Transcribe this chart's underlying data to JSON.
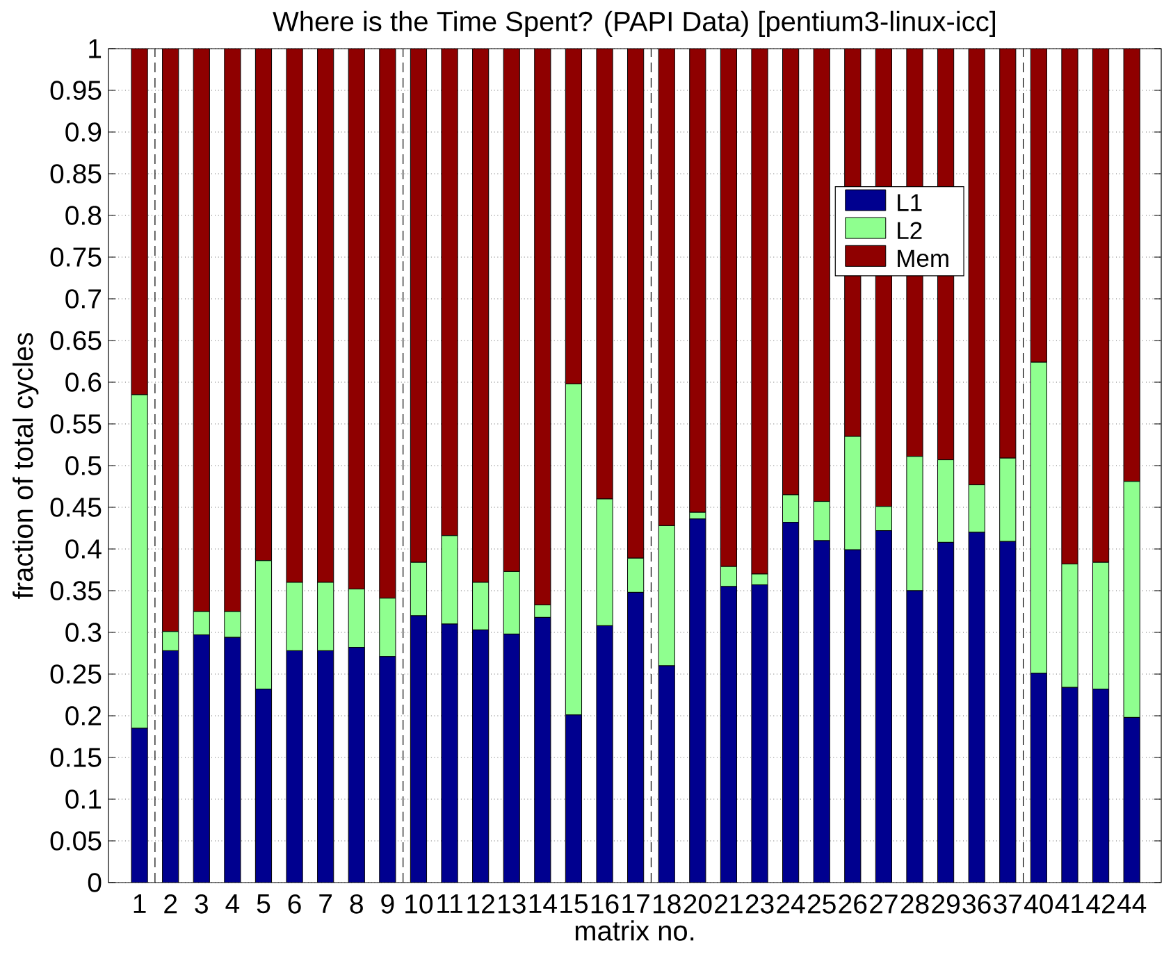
{
  "chart_data": {
    "type": "bar",
    "stacked": true,
    "title": "Where is the Time Spent? (PAPI Data) [pentium3-linux-icc]",
    "xlabel": "matrix no.",
    "ylabel": "fraction of total cycles",
    "categories": [
      "1",
      "2",
      "3",
      "4",
      "5",
      "6",
      "7",
      "8",
      "9",
      "10",
      "11",
      "12",
      "13",
      "14",
      "15",
      "16",
      "17",
      "18",
      "20",
      "21",
      "23",
      "24",
      "25",
      "26",
      "27",
      "28",
      "29",
      "36",
      "37",
      "40",
      "41",
      "42",
      "44"
    ],
    "series": [
      {
        "name": "L1",
        "color": "#00008f",
        "values": [
          0.185,
          0.278,
          0.297,
          0.294,
          0.232,
          0.278,
          0.278,
          0.282,
          0.271,
          0.32,
          0.31,
          0.303,
          0.298,
          0.318,
          0.201,
          0.308,
          0.348,
          0.26,
          0.436,
          0.355,
          0.357,
          0.432,
          0.41,
          0.399,
          0.422,
          0.35,
          0.408,
          0.42,
          0.409,
          0.251,
          0.234,
          0.232,
          0.198
        ]
      },
      {
        "name": "L2",
        "color": "#8fff8f",
        "values": [
          0.4,
          0.023,
          0.028,
          0.031,
          0.154,
          0.082,
          0.082,
          0.07,
          0.07,
          0.064,
          0.106,
          0.057,
          0.075,
          0.015,
          0.397,
          0.152,
          0.041,
          0.168,
          0.008,
          0.024,
          0.013,
          0.033,
          0.047,
          0.136,
          0.029,
          0.161,
          0.099,
          0.057,
          0.1,
          0.373,
          0.148,
          0.152,
          0.283
        ]
      },
      {
        "name": "Mem",
        "color": "#8f0000",
        "values": [
          0.415,
          0.699,
          0.675,
          0.675,
          0.614,
          0.64,
          0.64,
          0.648,
          0.659,
          0.616,
          0.584,
          0.64,
          0.627,
          0.667,
          0.402,
          0.54,
          0.611,
          0.572,
          0.556,
          0.621,
          0.63,
          0.535,
          0.543,
          0.465,
          0.549,
          0.489,
          0.493,
          0.523,
          0.491,
          0.376,
          0.618,
          0.616,
          0.519
        ]
      }
    ],
    "ylim": [
      0,
      1
    ],
    "yticks": [
      0,
      0.05,
      0.1,
      0.15,
      0.2,
      0.25,
      0.3,
      0.35,
      0.4,
      0.45,
      0.5,
      0.55,
      0.6,
      0.65,
      0.7,
      0.75,
      0.8,
      0.85,
      0.9,
      0.95,
      1
    ],
    "grid": "y",
    "legend": "top right"
  }
}
